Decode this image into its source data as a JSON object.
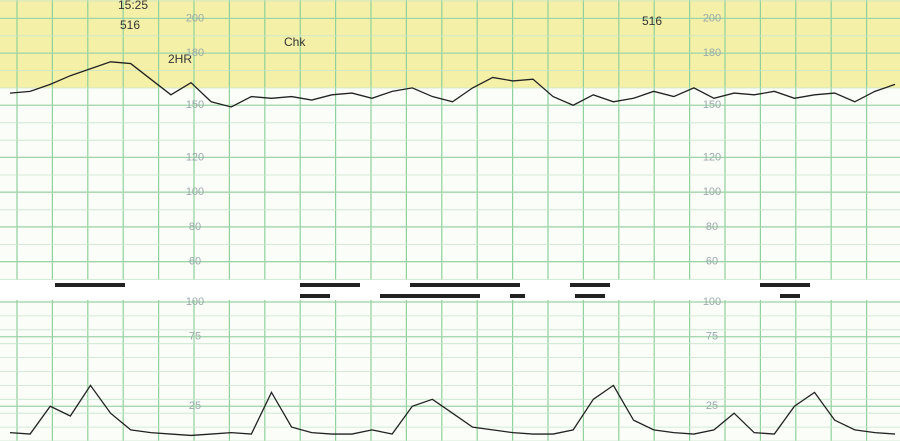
{
  "chart_data": {
    "type": "ctg",
    "annotations": [
      "15:25",
      "516",
      "2HR",
      "Chk",
      "516"
    ],
    "fhr": {
      "ylim": [
        50,
        210
      ],
      "yticks": [
        60,
        80,
        100,
        120,
        150,
        180,
        200
      ],
      "color": "#222222",
      "series": [
        {
          "values": [
            157,
            158,
            162,
            167,
            171,
            175,
            174,
            165,
            156,
            163,
            152,
            149,
            155,
            154,
            155,
            153,
            156,
            157,
            154,
            158,
            160,
            155,
            152,
            160,
            166,
            164,
            165,
            155,
            150,
            156,
            152,
            154,
            158,
            155,
            160,
            154,
            157,
            156,
            158,
            154,
            156,
            157,
            152,
            158,
            162
          ]
        }
      ]
    },
    "toco": {
      "ylim": [
        0,
        100
      ],
      "yticks": [
        25,
        75,
        100
      ],
      "color": "#222222",
      "series": [
        {
          "values": [
            6,
            5,
            25,
            18,
            40,
            20,
            8,
            6,
            5,
            4,
            5,
            6,
            5,
            35,
            10,
            6,
            5,
            5,
            8,
            5,
            25,
            30,
            20,
            10,
            8,
            6,
            5,
            5,
            8,
            30,
            40,
            15,
            8,
            6,
            5,
            8,
            20,
            6,
            5,
            25,
            35,
            15,
            8,
            6,
            5
          ]
        }
      ]
    }
  }
}
